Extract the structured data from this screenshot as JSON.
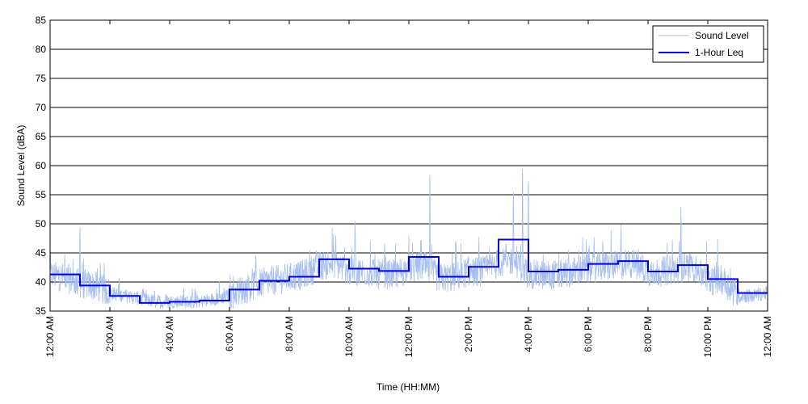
{
  "chart_data": {
    "type": "line",
    "title": "",
    "xlabel": "Time (HH:MM)",
    "ylabel": "Sound Level (dBA)",
    "xlim": [
      0,
      24
    ],
    "ylim": [
      35,
      85
    ],
    "y_ticks": [
      35,
      40,
      45,
      50,
      55,
      60,
      65,
      70,
      75,
      80,
      85
    ],
    "x_tick_hours": [
      0,
      2,
      4,
      6,
      8,
      10,
      12,
      14,
      16,
      18,
      20,
      22,
      24
    ],
    "x_tick_labels": [
      "12:00 AM",
      "2:00 AM",
      "4:00 AM",
      "6:00 AM",
      "8:00 AM",
      "10:00 AM",
      "12:00 PM",
      "2:00 PM",
      "4:00 PM",
      "6:00 PM",
      "8:00 PM",
      "10:00 PM",
      "12:00 AM"
    ],
    "grid": "horizontal",
    "legend_position": "top-right",
    "legend": [
      "Sound Level",
      "1-Hour Leq"
    ],
    "colors": {
      "sound_level": "#a7bff0",
      "leq": "#0000dd"
    },
    "series": [
      {
        "name": "Sound Level",
        "style": "thin line",
        "x": [
          0,
          0.5,
          1,
          1.5,
          2,
          2.5,
          3,
          3.5,
          4,
          4.5,
          5,
          5.5,
          6,
          6.5,
          7,
          7.5,
          8,
          8.5,
          9,
          9.5,
          10,
          10.5,
          11,
          11.5,
          12,
          12.5,
          13,
          13.5,
          14,
          14.5,
          15,
          15.5,
          16,
          16.5,
          17,
          17.5,
          18,
          18.5,
          19,
          19.5,
          20,
          20.5,
          21,
          21.5,
          22,
          22.5,
          23,
          23.5,
          24
        ],
        "y": [
          41,
          40.5,
          39.5,
          39,
          38,
          37.5,
          37,
          36.5,
          36.5,
          36.5,
          36.5,
          37,
          37.5,
          38.5,
          39.5,
          40,
          40.5,
          41,
          42.5,
          43,
          41.5,
          41.5,
          41,
          41,
          42,
          42.5,
          40.5,
          40.5,
          41.5,
          41.5,
          43,
          43.5,
          41,
          41,
          41,
          41.5,
          42,
          42.5,
          42.5,
          43,
          41.5,
          41.5,
          42,
          42.5,
          40,
          40,
          37.5,
          37.5,
          38
        ],
        "peaks": [
          {
            "x": 1.0,
            "y": 50.5
          },
          {
            "x": 10.2,
            "y": 50.5
          },
          {
            "x": 12.7,
            "y": 59
          },
          {
            "x": 15.5,
            "y": 56
          },
          {
            "x": 15.8,
            "y": 60.5
          },
          {
            "x": 16.0,
            "y": 58.5
          },
          {
            "x": 19.1,
            "y": 50.5
          },
          {
            "x": 21.1,
            "y": 53.5
          }
        ]
      },
      {
        "name": "1-Hour Leq",
        "style": "step",
        "hours": [
          0,
          1,
          2,
          3,
          4,
          5,
          6,
          7,
          8,
          9,
          10,
          11,
          12,
          13,
          14,
          15,
          16,
          17,
          18,
          19,
          20,
          21,
          22,
          23
        ],
        "values": [
          41.3,
          39.4,
          37.6,
          36.4,
          36.6,
          36.8,
          38.7,
          40.2,
          40.9,
          43.9,
          42.3,
          41.9,
          44.3,
          40.9,
          42.6,
          47.3,
          41.8,
          42.1,
          43.1,
          43.6,
          41.8,
          42.9,
          40.5,
          38.1
        ]
      }
    ]
  }
}
